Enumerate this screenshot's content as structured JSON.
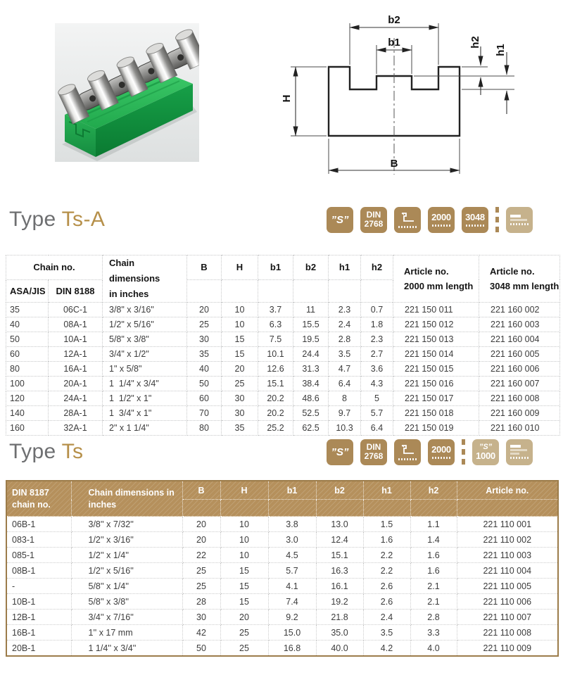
{
  "colors": {
    "accent_brown": "#ab8957",
    "accent_brown_light": "#c6b28c",
    "table2_header_bg": "#b5905c",
    "table2_border": "#9c7c4a",
    "heading_gray": "#6e6f71",
    "heading_gold": "#b6904a",
    "guide_green": "#23ab4f"
  },
  "diagram": {
    "b2": "b2",
    "b1": "b1",
    "h2": "h2",
    "h1": "h1",
    "H": "H",
    "B": "B"
  },
  "sections": [
    {
      "heading": {
        "prefix": "Type",
        "name": "Ts-A"
      },
      "badges": {
        "s_label": "”S”",
        "din_l1": "DIN",
        "din_l2": "2768",
        "len_a": "2000",
        "len_b": "3048"
      },
      "table": {
        "header": {
          "chain_no": "Chain no.",
          "asa_jis": "ASA/JIS",
          "din": "DIN 8188",
          "dims_l1": "Chain dimensions",
          "dims_l2": "in inches",
          "b": "B",
          "h": "H",
          "b1": "b1",
          "b2": "b2",
          "h1": "h1",
          "h2": "h2",
          "art1_l1": "Article no.",
          "art1_l2": "2000 mm length",
          "art2_l1": "Article no.",
          "art2_l2": "3048 mm length"
        },
        "rows": [
          [
            "35",
            "06C-1",
            "3/8\" x 3/16\"",
            "20",
            "10",
            "3.7",
            "11",
            "2.3",
            "0.7",
            "221 150 011",
            "221 160 002"
          ],
          [
            "40",
            "08A-1",
            "1/2\" x 5/16\"",
            "25",
            "10",
            "6.3",
            "15.5",
            "2.4",
            "1.8",
            "221 150 012",
            "221 160 003"
          ],
          [
            "50",
            "10A-1",
            "5/8\" x 3/8\"",
            "30",
            "15",
            "7.5",
            "19.5",
            "2.8",
            "2.3",
            "221 150 013",
            "221 160 004"
          ],
          [
            "60",
            "12A-1",
            "3/4\" x 1/2\"",
            "35",
            "15",
            "10.1",
            "24.4",
            "3.5",
            "2.7",
            "221 150 014",
            "221 160 005"
          ],
          [
            "80",
            "16A-1",
            "1\" x 5/8\"",
            "40",
            "20",
            "12.6",
            "31.3",
            "4.7",
            "3.6",
            "221 150 015",
            "221 160 006"
          ],
          [
            "100",
            "20A-1",
            "1  1/4\" x 3/4\"",
            "50",
            "25",
            "15.1",
            "38.4",
            "6.4",
            "4.3",
            "221 150 016",
            "221 160 007"
          ],
          [
            "120",
            "24A-1",
            "1  1/2\" x 1\"",
            "60",
            "30",
            "20.2",
            "48.6",
            "8",
            "5",
            "221 150 017",
            "221 160 008"
          ],
          [
            "140",
            "28A-1",
            "1  3/4\" x 1\"",
            "70",
            "30",
            "20.2",
            "52.5",
            "9.7",
            "5.7",
            "221 150 018",
            "221 160 009"
          ],
          [
            "160",
            "32A-1",
            "2\" x 1 1/4\"",
            "80",
            "35",
            "25.2",
            "62.5",
            "10.3",
            "6.4",
            "221 150 019",
            "221 160 010"
          ]
        ]
      }
    },
    {
      "heading": {
        "prefix": "Type",
        "name": "Ts"
      },
      "badges": {
        "s_label": "”S”",
        "din_l1": "DIN",
        "din_l2": "2768",
        "len_a": "2000",
        "s1000_l1": "”S”",
        "s1000_l2": "1000"
      },
      "table": {
        "header": {
          "col1_l1": "DIN 8187",
          "col1_l2": "chain no.",
          "dims_l1": "Chain dimensions in",
          "dims_l2": "inches",
          "b": "B",
          "h": "H",
          "b1": "b1",
          "b2": "b2",
          "h1": "h1",
          "h2": "h2",
          "article": "Article no."
        },
        "rows": [
          [
            "06B-1",
            "3/8'' x 7/32''",
            "20",
            "10",
            "3.8",
            "13.0",
            "1.5",
            "1.1",
            "221 110 001"
          ],
          [
            "083-1",
            "1/2'' x 3/16''",
            "20",
            "10",
            "3.0",
            "12.4",
            "1.6",
            "1.4",
            "221 110 002"
          ],
          [
            "085-1",
            "1/2'' x 1/4''",
            "22",
            "10",
            "4.5",
            "15.1",
            "2.2",
            "1.6",
            "221 110 003"
          ],
          [
            "08B-1",
            "1/2'' x 5/16''",
            "25",
            "15",
            "5.7",
            "16.3",
            "2.2",
            "1.6",
            "221 110 004"
          ],
          [
            "-",
            "5/8'' x 1/4''",
            "25",
            "15",
            "4.1",
            "16.1",
            "2.6",
            "2.1",
            "221 110 005"
          ],
          [
            "10B-1",
            "5/8'' x 3/8''",
            "28",
            "15",
            "7.4",
            "19.2",
            "2.6",
            "2.1",
            "221 110 006"
          ],
          [
            "12B-1",
            "3/4'' x 7/16''",
            "30",
            "20",
            "9.2",
            "21.8",
            "2.4",
            "2.8",
            "221 110 007"
          ],
          [
            "16B-1",
            "1'' x 17 mm",
            "42",
            "25",
            "15.0",
            "35.0",
            "3.5",
            "3.3",
            "221 110 008"
          ],
          [
            "20B-1",
            "1 1/4'' x 3/4''",
            "50",
            "25",
            "16.8",
            "40.0",
            "4.2",
            "4.0",
            "221 110 009"
          ]
        ]
      }
    }
  ]
}
